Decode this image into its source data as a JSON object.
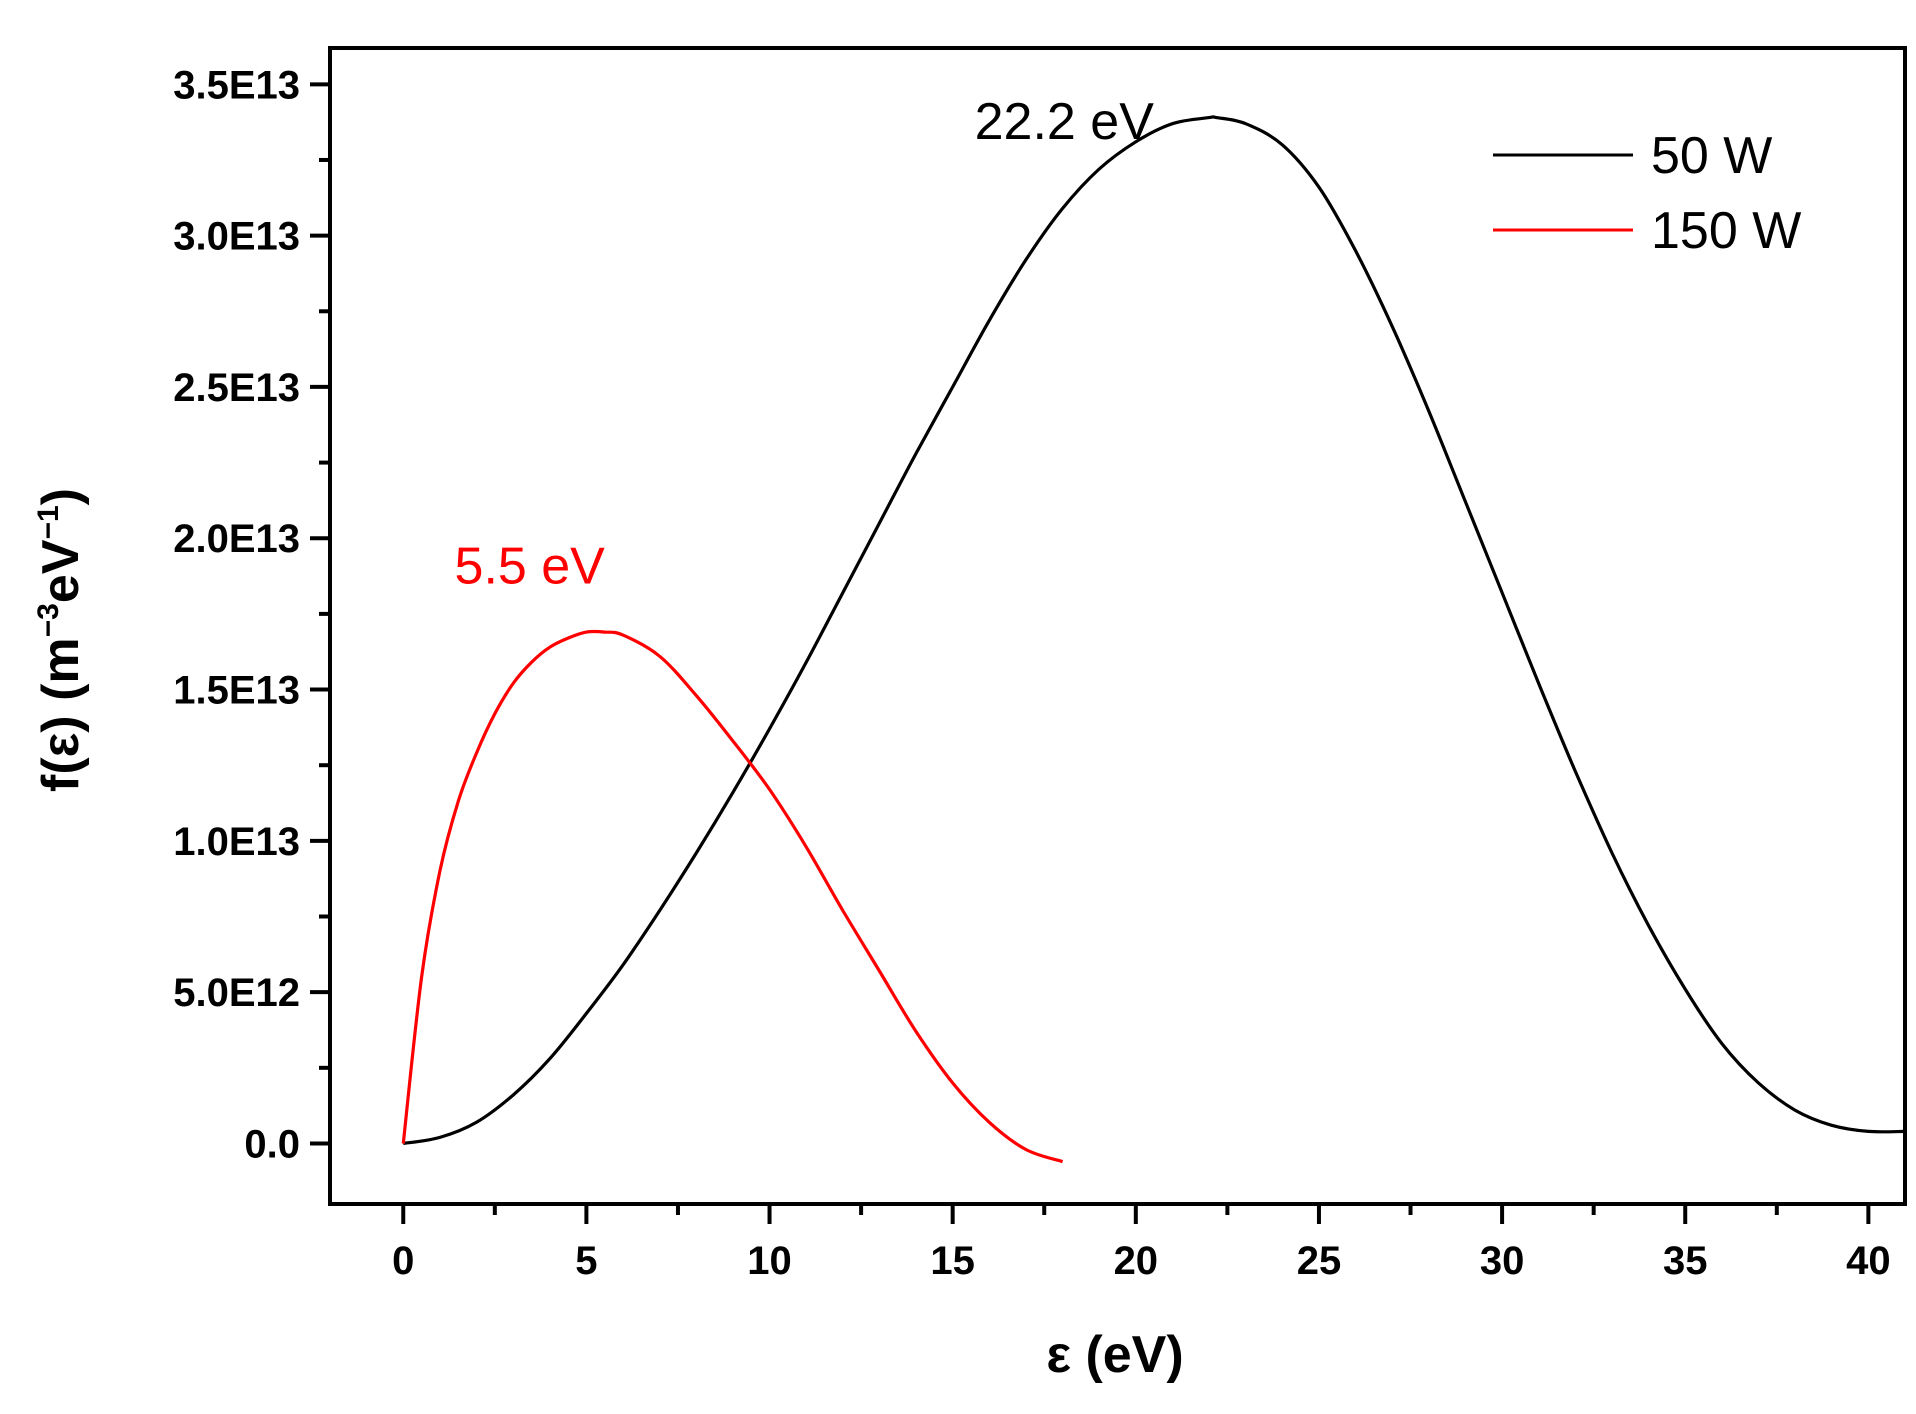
{
  "chart_data": {
    "type": "line",
    "xlabel": "ε (eV)",
    "ylabel": "f(ε) (m",
    "ylabel_sup1": "−3",
    "ylabel_mid": "eV",
    "ylabel_sup2": "−1",
    "ylabel_end": ")",
    "xlim": [
      -2,
      41
    ],
    "ylim": [
      -2000000000000.0,
      36200000000000.0
    ],
    "xticks": [
      0,
      5,
      10,
      15,
      20,
      25,
      30,
      35,
      40
    ],
    "xtick_labels": [
      "0",
      "5",
      "10",
      "15",
      "20",
      "25",
      "30",
      "35",
      "40"
    ],
    "yticks": [
      0,
      5000000000000.0,
      10000000000000.0,
      15000000000000.0,
      20000000000000.0,
      25000000000000.0,
      30000000000000.0,
      35000000000000.0
    ],
    "ytick_labels": [
      "0.0",
      "5.0E12",
      "1.0E13",
      "1.5E13",
      "2.0E13",
      "2.5E13",
      "3.0E13",
      "3.5E13"
    ],
    "grid": false,
    "legend_position": "top-right",
    "series": [
      {
        "name": "50 W",
        "color": "#000000",
        "x": [
          0,
          1,
          2,
          3,
          4,
          5,
          6,
          7,
          8,
          9,
          10,
          11,
          12,
          13,
          14,
          15,
          16,
          17,
          18,
          19,
          20,
          21,
          22,
          22.2,
          23,
          24,
          25,
          26,
          27,
          28,
          29,
          30,
          31,
          32,
          33,
          34,
          35,
          36,
          37,
          38,
          39,
          40,
          41
        ],
        "y": [
          0,
          200000000000.0,
          700000000000.0,
          1600000000000.0,
          2800000000000.0,
          4300000000000.0,
          5900000000000.0,
          7700000000000.0,
          9600000000000.0,
          11600000000000.0,
          13700000000000.0,
          15900000000000.0,
          18200000000000.0,
          20500000000000.0,
          22800000000000.0,
          25000000000000.0,
          27200000000000.0,
          29200000000000.0,
          30900000000000.0,
          32200000000000.0,
          33100000000000.0,
          33700000000000.0,
          33900000000000.0,
          33900000000000.0,
          33700000000000.0,
          33000000000000.0,
          31600000000000.0,
          29500000000000.0,
          27000000000000.0,
          24200000000000.0,
          21200000000000.0,
          18200000000000.0,
          15200000000000.0,
          12300000000000.0,
          9600000000000.0,
          7200000000000.0,
          5100000000000.0,
          3300000000000.0,
          2000000000000.0,
          1100000000000.0,
          600000000000.0,
          400000000000.0,
          400000000000.0
        ]
      },
      {
        "name": "150 W",
        "color": "#ff0000",
        "x": [
          0,
          0.5,
          1,
          1.5,
          2,
          2.5,
          3,
          3.5,
          4,
          4.5,
          5,
          5.5,
          6,
          7,
          8,
          9,
          10,
          11,
          12,
          13,
          14,
          15,
          16,
          17,
          18
        ],
        "y": [
          0,
          5500000000000.0,
          9000000000000.0,
          11300000000000.0,
          12900000000000.0,
          14200000000000.0,
          15200000000000.0,
          15900000000000.0,
          16400000000000.0,
          16700000000000.0,
          16900000000000.0,
          16900000000000.0,
          16800000000000.0,
          16100000000000.0,
          14800000000000.0,
          13300000000000.0,
          11700000000000.0,
          9800000000000.0,
          7700000000000.0,
          5700000000000.0,
          3700000000000.0,
          2000000000000.0,
          700000000000.0,
          -200000000000.0,
          -600000000000.0
        ]
      }
    ],
    "annotations": [
      {
        "text": "22.2 eV",
        "x": 15.6,
        "y": 33200000000000.0,
        "color": "#000000"
      },
      {
        "text": "5.5 eV",
        "x": 1.4,
        "y": 18500000000000.0,
        "color": "#ff0000"
      }
    ]
  }
}
